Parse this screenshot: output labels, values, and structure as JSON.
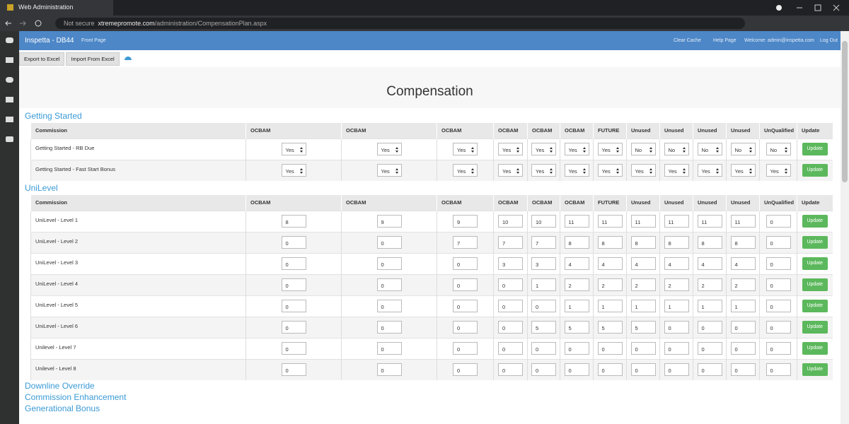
{
  "browser": {
    "tab_title": "Web Administration",
    "security": "Not secure",
    "url_host": "xtremepromote.com",
    "url_path": "/administration/CompensationPlan.aspx"
  },
  "navbar": {
    "brand": "Inspetta - DB44",
    "front_page": "Front Page",
    "clear_cache": "Clear Cache",
    "help_page": "Help Page",
    "welcome": "Welcome: admin@inspetta.com",
    "log_out": "Log Out"
  },
  "toolbar": {
    "export": "Export to Excel",
    "import": "Import From Excel"
  },
  "page_title": "Compensation",
  "columns": [
    "Commission",
    "OCBAM",
    "OCBAM",
    "OCBAM",
    "OCBAM",
    "OCBAM",
    "OCBAM",
    "FUTURE",
    "Unused",
    "Unused",
    "Unused",
    "Unused",
    "UnQualified",
    "Update"
  ],
  "update_label": "Update",
  "sections": [
    {
      "title": "Getting Started",
      "kind": "select",
      "rows": [
        {
          "label": "Getting Started - RB Due",
          "cells": [
            "Yes",
            "Yes",
            "Yes",
            "Yes",
            "Yes",
            "Yes",
            "Yes",
            "No",
            "No",
            "No",
            "No",
            "No"
          ]
        },
        {
          "label": "Getting Started - Fast Start Bonus",
          "cells": [
            "Yes",
            "Yes",
            "Yes",
            "Yes",
            "Yes",
            "Yes",
            "Yes",
            "Yes",
            "Yes",
            "Yes",
            "Yes",
            "Yes"
          ]
        }
      ]
    },
    {
      "title": "UniLevel",
      "kind": "input",
      "rows": [
        {
          "label": "UniLevel - Level 1",
          "cells": [
            8,
            9,
            9,
            10,
            10,
            11,
            11,
            11,
            11,
            11,
            11,
            0
          ]
        },
        {
          "label": "UniLevel - Level 2",
          "cells": [
            0,
            0,
            7,
            7,
            7,
            8,
            8,
            8,
            8,
            8,
            8,
            0
          ]
        },
        {
          "label": "UniLevel - Level 3",
          "cells": [
            0,
            0,
            0,
            3,
            3,
            4,
            4,
            4,
            4,
            4,
            4,
            0
          ]
        },
        {
          "label": "UniLevel - Level 4",
          "cells": [
            0,
            0,
            0,
            0,
            1,
            2,
            2,
            2,
            2,
            2,
            2,
            0
          ]
        },
        {
          "label": "UniLevel - Level 5",
          "cells": [
            0,
            0,
            0,
            0,
            0,
            1,
            1,
            1,
            1,
            1,
            1,
            0
          ]
        },
        {
          "label": "UniLevel - Level 6",
          "cells": [
            0,
            0,
            0,
            0,
            5,
            5,
            5,
            5,
            0,
            0,
            0,
            0
          ]
        },
        {
          "label": "Unilevel - Level 7",
          "cells": [
            0,
            0,
            0,
            0,
            0,
            0,
            0,
            0,
            0,
            0,
            0,
            0
          ]
        },
        {
          "label": "Unilevel - Level 8",
          "cells": [
            0,
            0,
            0,
            0,
            0,
            0,
            0,
            0,
            0,
            0,
            0,
            0
          ]
        }
      ]
    }
  ],
  "collapsed_sections": [
    "Downline Override",
    "Commission Enhancement",
    "Generational Bonus"
  ]
}
